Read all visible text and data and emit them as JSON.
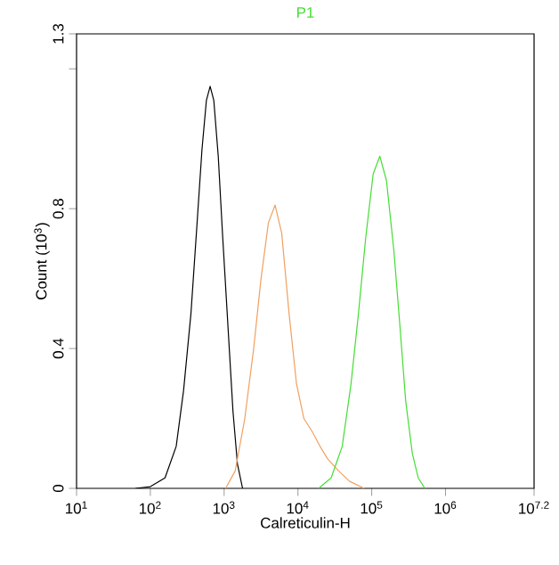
{
  "chart_data": {
    "type": "line",
    "xlabel": "Calreticulin-H",
    "ylabel": "Count (10$^{3}$)",
    "log": "x",
    "legend": "top",
    "marker": "none",
    "line_style": "solid",
    "xlim": [
      10,
      15848932
    ],
    "ylim": [
      0,
      1.3
    ],
    "xticks": [
      {
        "value": 10,
        "label": "10$^{1}$"
      },
      {
        "value": 100,
        "label": "10$^{2}$"
      },
      {
        "value": 1000,
        "label": "10$^{3}$"
      },
      {
        "value": 10000,
        "label": "10$^{4}$"
      },
      {
        "value": 100000,
        "label": "10$^{5}$"
      },
      {
        "value": 1000000,
        "label": "10$^{6}$"
      },
      {
        "value": 15848932,
        "label": "10$^{7.2}$"
      }
    ],
    "yticks": [
      0,
      0.4,
      0.8,
      {
        "value": 1.2,
        "label": null
      },
      1.3
    ],
    "series": [
      {
        "color": "#000000",
        "x": [
          63,
          100,
          158,
          224,
          282,
          355,
          427,
          501,
          575,
          646,
          724,
          832,
          955,
          1122,
          1318,
          1514,
          1778
        ],
        "values": [
          0,
          0.005,
          0.03,
          0.12,
          0.28,
          0.5,
          0.75,
          0.97,
          1.11,
          1.15,
          1.11,
          0.95,
          0.72,
          0.47,
          0.22,
          0.07,
          0
        ]
      },
      {
        "color": "#f0a060",
        "x": [
          1047,
          1413,
          1905,
          2512,
          3162,
          3981,
          4898,
          6026,
          7586,
          9550,
          12023,
          15849,
          19953,
          25119,
          35481,
          50119,
          79433
        ],
        "values": [
          0,
          0.05,
          0.2,
          0.4,
          0.6,
          0.76,
          0.81,
          0.73,
          0.5,
          0.3,
          0.2,
          0.16,
          0.12,
          0.085,
          0.05,
          0.02,
          0
        ]
      },
      {
        "name": "P1",
        "color": "#44dd33",
        "x": [
          19055,
          28184,
          39811,
          52481,
          66069,
          83176,
          104713,
          128825,
          158489,
          199526,
          239883,
          288403,
          354813,
          426580,
          524807
        ],
        "values": [
          0,
          0.03,
          0.12,
          0.3,
          0.5,
          0.72,
          0.9,
          0.95,
          0.88,
          0.68,
          0.47,
          0.25,
          0.1,
          0.03,
          0
        ]
      }
    ]
  }
}
